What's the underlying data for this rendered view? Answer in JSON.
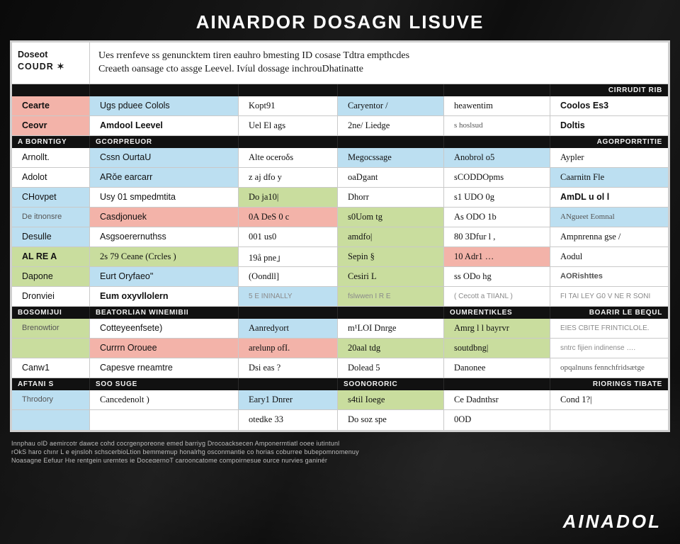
{
  "colors": {
    "blue": "#bcdff1",
    "salmon": "#f3b3a9",
    "green": "#c9dd9e",
    "white": "#ffffff",
    "black": "#111111",
    "panel_border": "#cfcfcf",
    "cell_border": "#c9c9c9"
  },
  "title": "AINARDOR DOSAGN LISUVE",
  "intro": {
    "left": {
      "line1": "Doseot",
      "line2": "COUDR ✶"
    },
    "right": {
      "line1": "Ues rrenfeve ss genuncktem tiren eauhro bmesting ID cosase Tdtra empthcdes",
      "line2": "Creaeth oansage cto assge Leevel.  Ivíul dossage   inchrouDhatinatte"
    }
  },
  "section_headers": [
    {
      "cells": [
        {
          "text": "",
          "align": "left"
        },
        {
          "text": "",
          "align": "left"
        },
        {
          "text": "",
          "align": "left"
        },
        {
          "text": "",
          "align": "left"
        },
        {
          "text": "",
          "align": "left"
        },
        {
          "text": "CIRRUDIT RIB",
          "align": "right"
        }
      ]
    },
    {
      "cells": [
        {
          "text": "A BORNTIGY",
          "align": "left"
        },
        {
          "text": "GCORPREUOR",
          "align": "left"
        },
        {
          "text": "",
          "align": "left"
        },
        {
          "text": "",
          "align": "left"
        },
        {
          "text": "",
          "align": "left"
        },
        {
          "text": "AGORPORRTITIE",
          "align": "right"
        }
      ]
    },
    {
      "cells": [
        {
          "text": "Bosomijui",
          "align": "left"
        },
        {
          "text": "BEATORLIAN  WINEMIBII",
          "align": "left"
        },
        {
          "text": "",
          "align": "left"
        },
        {
          "text": "",
          "align": "left"
        },
        {
          "text": "OUMRENTIKLES",
          "align": "left"
        },
        {
          "text": "BOARIR LE BEQUL",
          "align": "right"
        }
      ]
    },
    {
      "cells": [
        {
          "text": "AFTANI S",
          "align": "left"
        },
        {
          "text": "SOO SUGE",
          "align": "left"
        },
        {
          "text": "",
          "align": "left"
        },
        {
          "text": "SOONORORIC",
          "align": "left"
        },
        {
          "text": "",
          "align": "left"
        },
        {
          "text": "RIORINGS  TIBATE",
          "align": "right"
        }
      ]
    }
  ],
  "groups": [
    {
      "rows": [
        {
          "cells": [
            {
              "text": "Cearte",
              "bg": "salmon",
              "bold": true
            },
            {
              "text": "Ugs pduee Colols",
              "bg": "blue"
            },
            {
              "text": "Kopt91",
              "bg": "white",
              "serif": true
            },
            {
              "text": "Caryentor /",
              "bg": "blue",
              "serif": true
            },
            {
              "text": "heawentim",
              "bg": "white",
              "serif": true
            },
            {
              "text": "Coolos Es3",
              "bg": "white",
              "bold": true
            }
          ]
        },
        {
          "cells": [
            {
              "text": "Ceovr",
              "bg": "salmon",
              "bold": true
            },
            {
              "text": "Amdool Leevel",
              "bg": "white",
              "bold": true
            },
            {
              "text": "Uel El ags",
              "bg": "white",
              "serif": true
            },
            {
              "text": "2ne/  Liedge",
              "bg": "white",
              "serif": true
            },
            {
              "text": "s hoslsud",
              "bg": "white",
              "serif": true,
              "small": true
            },
            {
              "text": "Doltis",
              "bg": "white",
              "bold": true
            }
          ]
        }
      ]
    },
    {
      "rows": [
        {
          "cells": [
            {
              "text": "Arnollt.",
              "bg": "white"
            },
            {
              "text": "Cssn OurtaU",
              "bg": "blue"
            },
            {
              "text": "Alte oceroδs",
              "bg": "white",
              "serif": true
            },
            {
              "text": "Megocssage",
              "bg": "blue",
              "serif": true
            },
            {
              "text": "Anobrol o5",
              "bg": "blue",
              "serif": true
            },
            {
              "text": "Aypler",
              "bg": "white",
              "serif": true
            }
          ]
        },
        {
          "cells": [
            {
              "text": "Adolot",
              "bg": "white"
            },
            {
              "text": "ARǒe earcarr",
              "bg": "blue"
            },
            {
              "text": "z aj   dfo y",
              "bg": "white",
              "serif": true
            },
            {
              "text": "oaDgant",
              "bg": "white",
              "serif": true
            },
            {
              "text": "sCODDOpms",
              "bg": "white",
              "serif": true
            },
            {
              "text": "Caarnitn Fle",
              "bg": "blue",
              "serif": true
            }
          ]
        },
        {
          "cells": [
            {
              "text": "CHovpet",
              "bg": "blue"
            },
            {
              "text": "Usy 01 smpedmtita",
              "bg": "white"
            },
            {
              "text": "Do  ja10|",
              "bg": "green",
              "serif": true
            },
            {
              "text": "Dhorr",
              "bg": "white",
              "serif": true
            },
            {
              "text": "s1 UDO  0g",
              "bg": "white",
              "serif": true
            },
            {
              "text": "AmDL u  ol l",
              "bg": "white",
              "bold": true
            }
          ]
        },
        {
          "cells": [
            {
              "text": "De itnonsre",
              "bg": "blue",
              "small": true
            },
            {
              "text": "Casdjonuek",
              "bg": "salmon"
            },
            {
              "text": "0A DeS  0 c",
              "bg": "salmon",
              "serif": true
            },
            {
              "text": "s0Uom tg",
              "bg": "green",
              "serif": true
            },
            {
              "text": "As ODO  1b",
              "bg": "white",
              "serif": true
            },
            {
              "text": "ANgueet  Eomnal",
              "bg": "blue",
              "serif": true,
              "small": true
            }
          ]
        },
        {
          "cells": [
            {
              "text": "Desulle",
              "bg": "blue"
            },
            {
              "text": "Asgsoerernuthss",
              "bg": "white"
            },
            {
              "text": "001  us0",
              "bg": "white",
              "serif": true
            },
            {
              "text": "amdfo|",
              "bg": "green",
              "serif": true
            },
            {
              "text": "80 3Dfur l  ,",
              "bg": "white",
              "serif": true
            },
            {
              "text": "Ampnrenna  gse /",
              "bg": "white",
              "serif": true
            }
          ]
        },
        {
          "cells": [
            {
              "text": "AL RE A",
              "bg": "green",
              "bold": true
            },
            {
              "text": "2s 79 Ceane (Crcles )",
              "bg": "green",
              "serif": true
            },
            {
              "text": "19å  pne」",
              "bg": "white",
              "serif": true
            },
            {
              "text": "Sepin  §",
              "bg": "green",
              "serif": true
            },
            {
              "text": "10 Adr1  …",
              "bg": "salmon",
              "serif": true
            },
            {
              "text": "Aodul",
              "bg": "white",
              "serif": true
            }
          ]
        },
        {
          "cells": [
            {
              "text": "Dapone",
              "bg": "green"
            },
            {
              "text": "Eurt Oryfaeo\"",
              "bg": "blue"
            },
            {
              "text": "(Oondll]",
              "bg": "white",
              "serif": true
            },
            {
              "text": "Cesiri L",
              "bg": "green",
              "serif": true
            },
            {
              "text": "ss ODo   hg",
              "bg": "white",
              "serif": true
            },
            {
              "text": "AORishtŧes",
              "bg": "white",
              "bold": true,
              "small": true
            }
          ]
        },
        {
          "cells": [
            {
              "text": "Dronviei",
              "bg": "white"
            },
            {
              "text": "Eum oxyvllolern",
              "bg": "white",
              "bold": true
            },
            {
              "text": "5 E ININALLY",
              "bg": "blue",
              "faded": true
            },
            {
              "text": "fslwwen  I  R E",
              "bg": "green",
              "faded": true
            },
            {
              "text": "( Cecott a  TIIANL )",
              "bg": "white",
              "faded": true
            },
            {
              "text": "FI TAI  LEY  G0 V  NE R SONI",
              "bg": "white",
              "faded": true
            }
          ]
        }
      ]
    },
    {
      "rows": [
        {
          "cells": [
            {
              "text": "Brenowtior",
              "bg": "green",
              "small": true
            },
            {
              "text": "Cotteyeenfsete)",
              "bg": "white"
            },
            {
              "text": "Aanredyort",
              "bg": "blue",
              "serif": true
            },
            {
              "text": "m¹LOI  Dnrge",
              "bg": "white",
              "serif": true
            },
            {
              "text": "Amrg l l  bayrvr",
              "bg": "green",
              "serif": true
            },
            {
              "text": "EIES CBITE FRINTICLOLE.",
              "bg": "white",
              "faded": true
            }
          ]
        },
        {
          "cells": [
            {
              "text": "",
              "bg": "green"
            },
            {
              "text": "Currrn Orouee",
              "bg": "salmon"
            },
            {
              "text": "arelunp ofI.",
              "bg": "salmon",
              "serif": true
            },
            {
              "text": "20aal  tdg",
              "bg": "green",
              "serif": true
            },
            {
              "text": "soutdbng|",
              "bg": "green",
              "serif": true
            },
            {
              "text": "sntrc fijien indinense  ….",
              "bg": "white",
              "faded": true
            }
          ]
        },
        {
          "cells": [
            {
              "text": "Canw1",
              "bg": "white"
            },
            {
              "text": "Capesve  rneamtre",
              "bg": "white"
            },
            {
              "text": "Dsi eas ?",
              "bg": "white",
              "serif": true
            },
            {
              "text": "Dolead  5",
              "bg": "white",
              "serif": true
            },
            {
              "text": "Danonee",
              "bg": "white",
              "serif": true
            },
            {
              "text": "opqalnuns  fennchfridsætge",
              "bg": "white",
              "serif": true,
              "small": true
            }
          ]
        }
      ]
    },
    {
      "rows": [
        {
          "cells": [
            {
              "text": "Throdory",
              "bg": "blue",
              "small": true
            },
            {
              "text": "Cancedenolt )",
              "bg": "white",
              "serif": true
            },
            {
              "text": "Eary1 Dnrer",
              "bg": "blue",
              "serif": true
            },
            {
              "text": "s4til  Ioege",
              "bg": "green",
              "serif": true
            },
            {
              "text": "Ce Dadnthsr",
              "bg": "white",
              "serif": true
            },
            {
              "text": "Cond 1?|",
              "bg": "white",
              "serif": true
            }
          ]
        },
        {
          "cells": [
            {
              "text": "",
              "bg": "blue"
            },
            {
              "text": "",
              "bg": "white"
            },
            {
              "text": "otedke 33",
              "bg": "white",
              "serif": true
            },
            {
              "text": "Do  soz  spe",
              "bg": "white",
              "serif": true
            },
            {
              "text": "0OD",
              "bg": "white",
              "serif": true
            },
            {
              "text": "",
              "bg": "white"
            }
          ]
        }
      ]
    }
  ],
  "footer": {
    "line1": "Innphau oID aemircotr dawce cohd cocrgenporeone  emed  barriyg Drocoacksecen Amponermtiatl ooee iutintunl",
    "line2": "rOkS haro chınr L e ejnsloh schscerbioLtion bemmemup  honalrhg osconmantie co horias coburree  bubepomnomenuy",
    "line3": "Noasagne Eefuur Hıe rentgein urerntes ie DoceαernoT carooncatome compoirnesue ource nurvies ganinér"
  },
  "brand": "AINADOL"
}
